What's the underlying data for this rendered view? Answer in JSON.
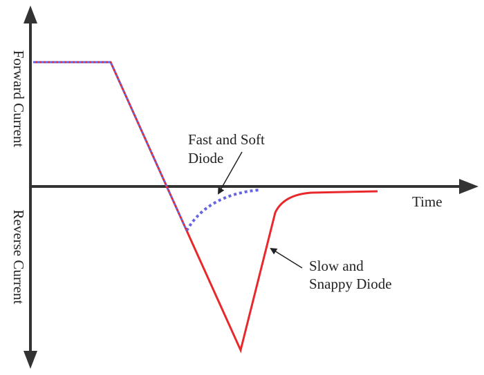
{
  "axes": {
    "y_top_label": "Forward Current",
    "y_bottom_label": "Reverse Current",
    "x_label": "Time"
  },
  "annotations": [
    {
      "lines": [
        "Fast and Soft",
        "Diode"
      ]
    },
    {
      "lines": [
        "Slow and",
        "Snappy Diode"
      ]
    }
  ]
}
